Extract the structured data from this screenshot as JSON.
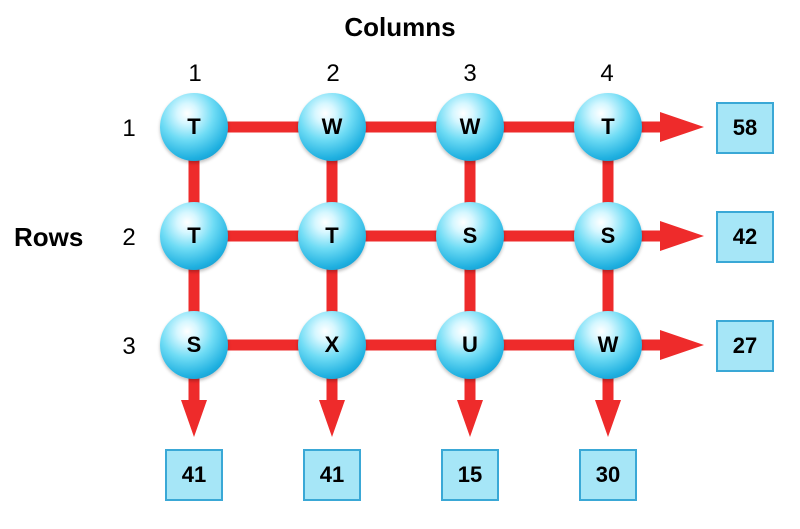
{
  "headings": {
    "columns": "Columns",
    "rows": "Rows"
  },
  "column_labels": [
    "1",
    "2",
    "3",
    "4"
  ],
  "row_labels": [
    "1",
    "2",
    "3"
  ],
  "grid": [
    [
      "T",
      "W",
      "W",
      "T"
    ],
    [
      "T",
      "T",
      "S",
      "S"
    ],
    [
      "S",
      "X",
      "U",
      "W"
    ]
  ],
  "row_sums": [
    "58",
    "42",
    "27"
  ],
  "column_sums": [
    "41",
    "41",
    "15",
    "30"
  ],
  "colors": {
    "connector": "#ee2b2b",
    "ball": "#2bbbe8",
    "box_fill": "#a6e6f7",
    "box_border": "#3aa8d6"
  }
}
